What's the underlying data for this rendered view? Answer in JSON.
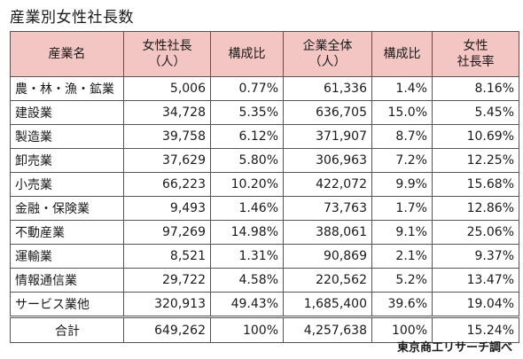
{
  "title": "産業別女性社長数",
  "headers": {
    "industry": "産業名",
    "female_presidents_line1": "女性社長",
    "female_presidents_line2": "（人）",
    "female_share": "構成比",
    "all_companies_line1": "企業全体",
    "all_companies_line2": "（人）",
    "all_share": "構成比",
    "female_ratio_line1": "女性",
    "female_ratio_line2": "社長率"
  },
  "rows": [
    {
      "industry": "農・林・漁・鉱業",
      "female_presidents": "5,006",
      "female_share": "0.77%",
      "all_companies": "61,336",
      "all_share": "1.4%",
      "female_ratio": "8.16%"
    },
    {
      "industry": "建設業",
      "female_presidents": "34,728",
      "female_share": "5.35%",
      "all_companies": "636,705",
      "all_share": "15.0%",
      "female_ratio": "5.45%"
    },
    {
      "industry": "製造業",
      "female_presidents": "39,758",
      "female_share": "6.12%",
      "all_companies": "371,907",
      "all_share": "8.7%",
      "female_ratio": "10.69%"
    },
    {
      "industry": "卸売業",
      "female_presidents": "37,629",
      "female_share": "5.80%",
      "all_companies": "306,963",
      "all_share": "7.2%",
      "female_ratio": "12.25%"
    },
    {
      "industry": "小売業",
      "female_presidents": "66,223",
      "female_share": "10.20%",
      "all_companies": "422,072",
      "all_share": "9.9%",
      "female_ratio": "15.68%"
    },
    {
      "industry": "金融・保険業",
      "female_presidents": "9,493",
      "female_share": "1.46%",
      "all_companies": "73,763",
      "all_share": "1.7%",
      "female_ratio": "12.86%"
    },
    {
      "industry": "不動産業",
      "female_presidents": "97,269",
      "female_share": "14.98%",
      "all_companies": "388,061",
      "all_share": "9.1%",
      "female_ratio": "25.06%"
    },
    {
      "industry": "運輸業",
      "female_presidents": "8,521",
      "female_share": "1.31%",
      "all_companies": "90,869",
      "all_share": "2.1%",
      "female_ratio": "9.37%"
    },
    {
      "industry": "情報通信業",
      "female_presidents": "29,722",
      "female_share": "4.58%",
      "all_companies": "220,562",
      "all_share": "5.2%",
      "female_ratio": "13.47%"
    },
    {
      "industry": "サービス業他",
      "female_presidents": "320,913",
      "female_share": "49.43%",
      "all_companies": "1,685,400",
      "all_share": "39.6%",
      "female_ratio": "19.04%"
    }
  ],
  "total": {
    "industry": "合計",
    "female_presidents": "649,262",
    "female_share": "100%",
    "all_companies": "4,257,638",
    "all_share": "100%",
    "female_ratio": "15.24%"
  },
  "source": "東京商工リサーチ調べ",
  "colors": {
    "header_background": "#f3c6c3",
    "border": "#555555"
  }
}
